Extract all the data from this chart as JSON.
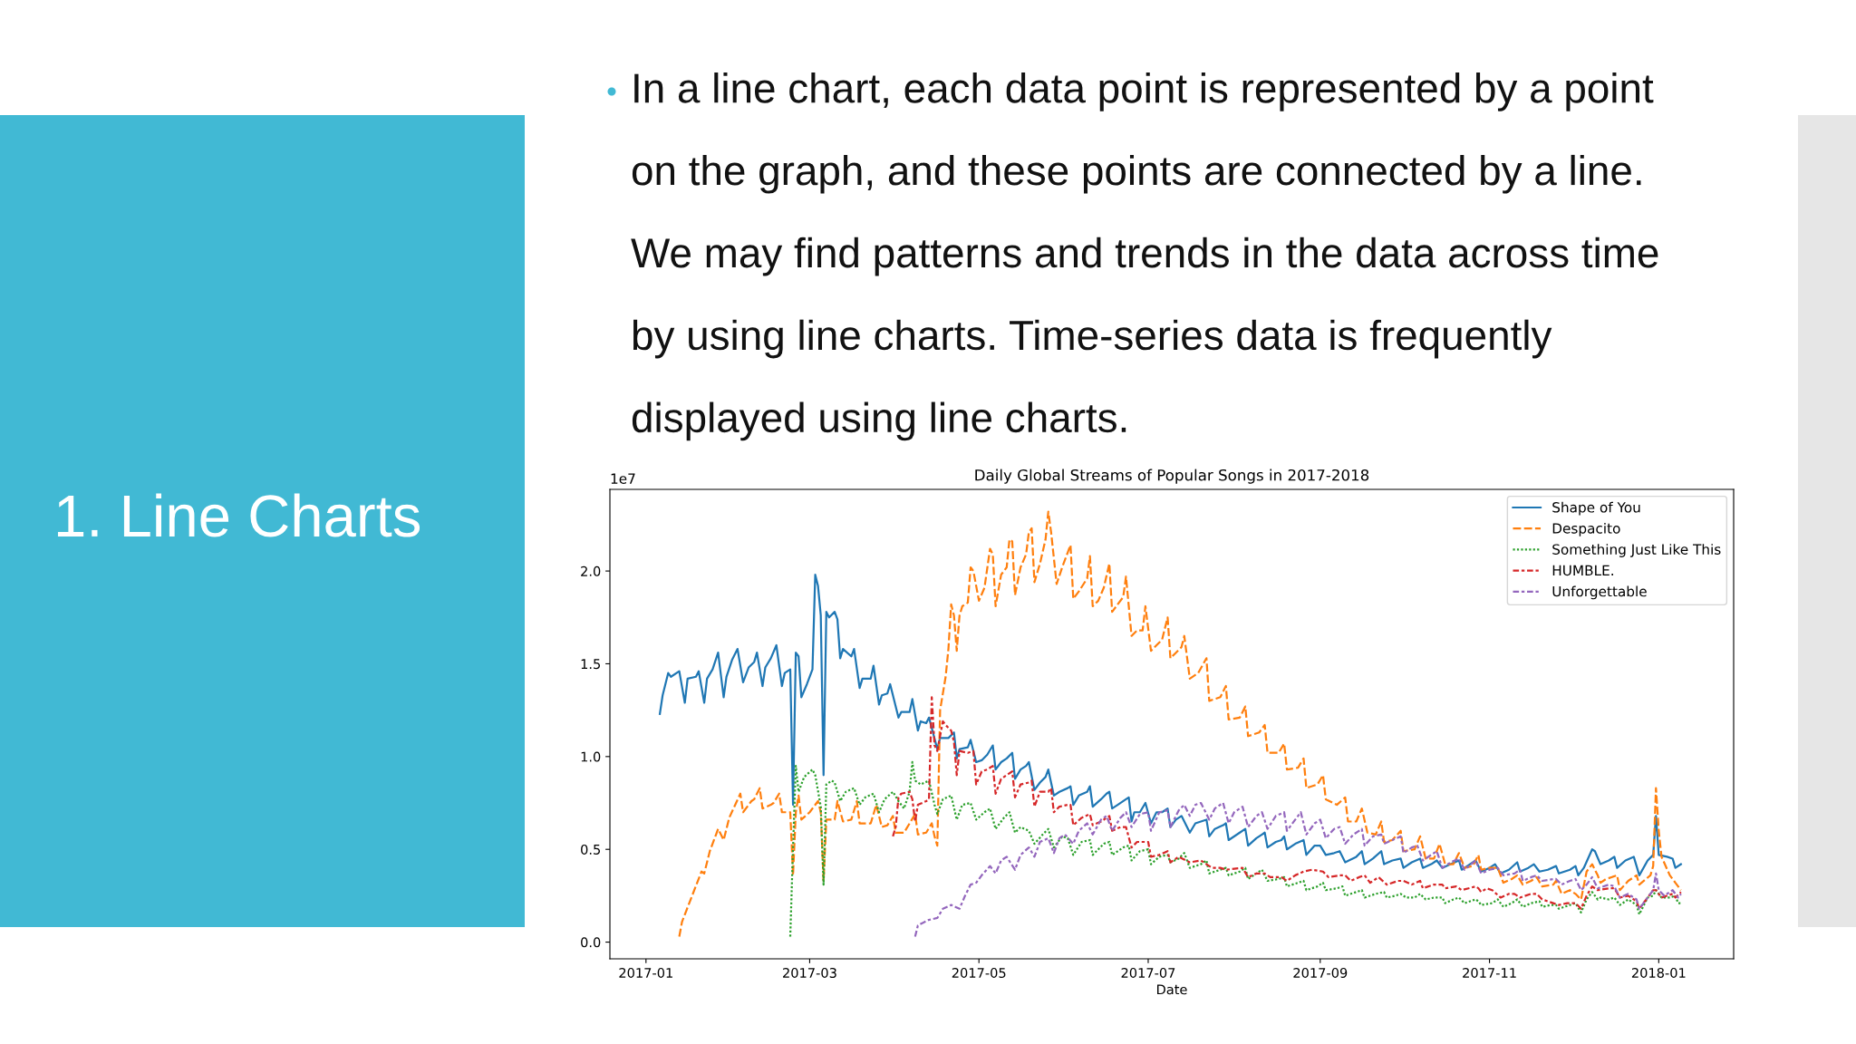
{
  "chart_data": {
    "type": "line",
    "title": "Daily Global Streams of Popular Songs in 2017-2018",
    "xlabel": "Date",
    "annotations": [
      "1. Line Charts",
      "In a line chart, each data point is represented by a point on the graph, and these points are connected by a line. We may find patterns and trends in the data across time by using line charts. Time-series data is frequently displayed using line charts.",
      "1e7"
    ],
    "xlim": [
      "2016-12-19",
      "2018-01-28"
    ],
    "ylim": [
      -0.09,
      2.44
    ],
    "xticks": [
      "2017-01",
      "2017-03",
      "2017-05",
      "2017-07",
      "2017-09",
      "2017-11",
      "2018-01"
    ],
    "yticks": [
      {
        "value": 0,
        "label": "0.0"
      },
      {
        "value": 0.5,
        "label": "0.5"
      },
      {
        "value": 1,
        "label": "1.0"
      },
      {
        "value": 1.5,
        "label": "1.5"
      },
      {
        "value": 2,
        "label": "2.0"
      }
    ],
    "grid": false,
    "legend": "top right",
    "series": [
      {
        "name": "Shape of You",
        "color": "#1f77b4",
        "line_style": "solid",
        "x": [
          "2017-01-06",
          "2017-01-07",
          "2017-01-09",
          "2017-01-10",
          "2017-01-13",
          "2017-01-15",
          "2017-01-16",
          "2017-01-19",
          "2017-01-20",
          "2017-01-22",
          "2017-01-23",
          "2017-01-25",
          "2017-01-27",
          "2017-01-29",
          "2017-01-30",
          "2017-02-01",
          "2017-02-03",
          "2017-02-05",
          "2017-02-07",
          "2017-02-09",
          "2017-02-10",
          "2017-02-12",
          "2017-02-13",
          "2017-02-15",
          "2017-02-17",
          "2017-02-19",
          "2017-02-20",
          "2017-02-22",
          "2017-02-23",
          "2017-02-24",
          "2017-02-25",
          "2017-02-26",
          "2017-02-28",
          "2017-03-02",
          "2017-03-03",
          "2017-03-04",
          "2017-03-05",
          "2017-03-06",
          "2017-03-07",
          "2017-03-08",
          "2017-03-10",
          "2017-03-11",
          "2017-03-12",
          "2017-03-13",
          "2017-03-16",
          "2017-03-17",
          "2017-03-19",
          "2017-03-20",
          "2017-03-23",
          "2017-03-24",
          "2017-03-26",
          "2017-03-27",
          "2017-03-29",
          "2017-03-30",
          "2017-04-02",
          "2017-04-03",
          "2017-04-06",
          "2017-04-07",
          "2017-04-09",
          "2017-04-10",
          "2017-04-12",
          "2017-04-13",
          "2017-04-16",
          "2017-04-17",
          "2017-04-20",
          "2017-04-22",
          "2017-04-23",
          "2017-04-24",
          "2017-04-27",
          "2017-04-28",
          "2017-04-30",
          "2017-05-02",
          "2017-05-04",
          "2017-05-06",
          "2017-05-07",
          "2017-05-09",
          "2017-05-11",
          "2017-05-13",
          "2017-05-14",
          "2017-05-16",
          "2017-05-18",
          "2017-05-19",
          "2017-05-21",
          "2017-05-23",
          "2017-05-25",
          "2017-05-26",
          "2017-05-28",
          "2017-05-30",
          "2017-06-02",
          "2017-06-03",
          "2017-06-04",
          "2017-06-06",
          "2017-06-09",
          "2017-06-10",
          "2017-06-11",
          "2017-06-14",
          "2017-06-16",
          "2017-06-17",
          "2017-06-18",
          "2017-06-20",
          "2017-06-23",
          "2017-06-24",
          "2017-06-25",
          "2017-06-26",
          "2017-06-28",
          "2017-06-30",
          "2017-07-02",
          "2017-07-04",
          "2017-07-06",
          "2017-07-08",
          "2017-07-09",
          "2017-07-11",
          "2017-07-13",
          "2017-07-16",
          "2017-07-18",
          "2017-07-20",
          "2017-07-22",
          "2017-07-23",
          "2017-07-25",
          "2017-07-28",
          "2017-07-29",
          "2017-07-30",
          "2017-08-03",
          "2017-08-05",
          "2017-08-06",
          "2017-08-09",
          "2017-08-11",
          "2017-08-12",
          "2017-08-13",
          "2017-08-16",
          "2017-08-18",
          "2017-08-19",
          "2017-08-20",
          "2017-08-23",
          "2017-08-26",
          "2017-08-27",
          "2017-08-30",
          "2017-09-01",
          "2017-09-03",
          "2017-09-06",
          "2017-09-08",
          "2017-09-10",
          "2017-09-14",
          "2017-09-16",
          "2017-09-17",
          "2017-09-20",
          "2017-09-23",
          "2017-09-24",
          "2017-09-27",
          "2017-09-30",
          "2017-10-01",
          "2017-10-04",
          "2017-10-07",
          "2017-10-08",
          "2017-10-11",
          "2017-10-13",
          "2017-10-15",
          "2017-10-18",
          "2017-10-21",
          "2017-10-22",
          "2017-10-24",
          "2017-10-27",
          "2017-10-29",
          "2017-11-01",
          "2017-11-03",
          "2017-11-05",
          "2017-11-08",
          "2017-11-11",
          "2017-11-12",
          "2017-11-15",
          "2017-11-17",
          "2017-11-19",
          "2017-11-22",
          "2017-11-25",
          "2017-11-26",
          "2017-11-30",
          "2017-12-02",
          "2017-12-03",
          "2017-12-05",
          "2017-12-08",
          "2017-12-09",
          "2017-12-11",
          "2017-12-14",
          "2017-12-16",
          "2017-12-17",
          "2017-12-20",
          "2017-12-23",
          "2017-12-25",
          "2017-12-28",
          "2017-12-30",
          "2017-12-31",
          "2018-01-01",
          "2018-01-04",
          "2018-01-06",
          "2018-01-07",
          "2018-01-09"
        ],
        "values": [
          1.23,
          1.33,
          1.45,
          1.43,
          1.46,
          1.29,
          1.42,
          1.43,
          1.46,
          1.29,
          1.42,
          1.47,
          1.56,
          1.32,
          1.43,
          1.52,
          1.58,
          1.4,
          1.48,
          1.51,
          1.56,
          1.38,
          1.48,
          1.53,
          1.6,
          1.38,
          1.45,
          1.47,
          0.74,
          1.56,
          1.54,
          1.32,
          1.39,
          1.47,
          1.98,
          1.92,
          1.76,
          0.9,
          1.78,
          1.75,
          1.78,
          1.74,
          1.53,
          1.58,
          1.54,
          1.58,
          1.37,
          1.42,
          1.42,
          1.49,
          1.28,
          1.33,
          1.34,
          1.39,
          1.21,
          1.24,
          1.24,
          1.31,
          1.14,
          1.19,
          1.18,
          1.21,
          1.04,
          1.1,
          1.1,
          1.13,
          0.99,
          1.04,
          1.05,
          1.09,
          0.97,
          0.98,
          1.01,
          1.06,
          0.93,
          0.97,
          0.99,
          1.02,
          0.88,
          0.93,
          0.95,
          0.97,
          0.82,
          0.86,
          0.89,
          0.93,
          0.79,
          0.81,
          0.83,
          0.84,
          0.74,
          0.79,
          0.81,
          0.84,
          0.73,
          0.77,
          0.8,
          0.81,
          0.72,
          0.74,
          0.77,
          0.78,
          0.65,
          0.7,
          0.7,
          0.75,
          0.64,
          0.7,
          0.7,
          0.72,
          0.62,
          0.66,
          0.68,
          0.59,
          0.64,
          0.65,
          0.66,
          0.57,
          0.61,
          0.63,
          0.64,
          0.55,
          0.59,
          0.61,
          0.52,
          0.56,
          0.58,
          0.59,
          0.51,
          0.54,
          0.55,
          0.57,
          0.5,
          0.53,
          0.55,
          0.47,
          0.52,
          0.52,
          0.47,
          0.48,
          0.49,
          0.43,
          0.46,
          0.49,
          0.42,
          0.45,
          0.49,
          0.42,
          0.44,
          0.45,
          0.4,
          0.43,
          0.45,
          0.4,
          0.42,
          0.44,
          0.4,
          0.42,
          0.44,
          0.39,
          0.41,
          0.44,
          0.38,
          0.4,
          0.42,
          0.37,
          0.39,
          0.43,
          0.38,
          0.4,
          0.42,
          0.38,
          0.39,
          0.41,
          0.37,
          0.39,
          0.41,
          0.36,
          0.4,
          0.5,
          0.49,
          0.42,
          0.44,
          0.46,
          0.4,
          0.44,
          0.46,
          0.36,
          0.44,
          0.47,
          0.68,
          0.47,
          0.46,
          0.45,
          0.4,
          0.42
        ]
      },
      {
        "name": "Despacito",
        "color": "#ff7f0e",
        "line_style": "dashed",
        "x": [
          "2017-01-13",
          "2017-01-14",
          "2017-01-21",
          "2017-01-22",
          "2017-01-24",
          "2017-01-27",
          "2017-01-29",
          "2017-01-31",
          "2017-02-04",
          "2017-02-05",
          "2017-02-08",
          "2017-02-09",
          "2017-02-11",
          "2017-02-12",
          "2017-02-15",
          "2017-02-16",
          "2017-02-18",
          "2017-02-19",
          "2017-02-22",
          "2017-02-23",
          "2017-02-24",
          "2017-02-25",
          "2017-02-26",
          "2017-03-01",
          "2017-03-04",
          "2017-03-05",
          "2017-03-06",
          "2017-03-07",
          "2017-03-10",
          "2017-03-11",
          "2017-03-13",
          "2017-03-16",
          "2017-03-18",
          "2017-03-19",
          "2017-03-23",
          "2017-03-25",
          "2017-03-27",
          "2017-03-29",
          "2017-03-31",
          "2017-04-01",
          "2017-04-04",
          "2017-04-08",
          "2017-04-09",
          "2017-04-12",
          "2017-04-14",
          "2017-04-15",
          "2017-04-16",
          "2017-04-17",
          "2017-04-19",
          "2017-04-20",
          "2017-04-21",
          "2017-04-22",
          "2017-04-23",
          "2017-04-24",
          "2017-04-25",
          "2017-04-27",
          "2017-04-28",
          "2017-04-29",
          "2017-05-01",
          "2017-05-03",
          "2017-05-05",
          "2017-05-06",
          "2017-05-07",
          "2017-05-09",
          "2017-05-11",
          "2017-05-12",
          "2017-05-13",
          "2017-05-14",
          "2017-05-16",
          "2017-05-18",
          "2017-05-19",
          "2017-05-20",
          "2017-05-21",
          "2017-05-23",
          "2017-05-25",
          "2017-05-26",
          "2017-05-27",
          "2017-05-29",
          "2017-05-31",
          "2017-06-02",
          "2017-06-03",
          "2017-06-04",
          "2017-06-06",
          "2017-06-09",
          "2017-06-10",
          "2017-06-11",
          "2017-06-13",
          "2017-06-15",
          "2017-06-17",
          "2017-06-18",
          "2017-06-20",
          "2017-06-22",
          "2017-06-23",
          "2017-06-25",
          "2017-06-27",
          "2017-06-29",
          "2017-06-30",
          "2017-07-02",
          "2017-07-04",
          "2017-07-06",
          "2017-07-08",
          "2017-07-09",
          "2017-07-11",
          "2017-07-13",
          "2017-07-14",
          "2017-07-16",
          "2017-07-19",
          "2017-07-22",
          "2017-07-23",
          "2017-07-27",
          "2017-07-29",
          "2017-07-30",
          "2017-08-03",
          "2017-08-05",
          "2017-08-06",
          "2017-08-10",
          "2017-08-12",
          "2017-08-13",
          "2017-08-17",
          "2017-08-19",
          "2017-08-20",
          "2017-08-24",
          "2017-08-26",
          "2017-08-27",
          "2017-08-31",
          "2017-09-02",
          "2017-09-03",
          "2017-09-07",
          "2017-09-10",
          "2017-09-11",
          "2017-09-14",
          "2017-09-16",
          "2017-09-18",
          "2017-09-21",
          "2017-09-23",
          "2017-09-24",
          "2017-09-27",
          "2017-09-30",
          "2017-10-01",
          "2017-10-05",
          "2017-10-07",
          "2017-10-09",
          "2017-10-12",
          "2017-10-14",
          "2017-10-16",
          "2017-10-19",
          "2017-10-21",
          "2017-10-23",
          "2017-10-26",
          "2017-10-28",
          "2017-10-29",
          "2017-11-01",
          "2017-11-04",
          "2017-11-06",
          "2017-11-09",
          "2017-11-11",
          "2017-11-13",
          "2017-11-16",
          "2017-11-18",
          "2017-11-20",
          "2017-11-24",
          "2017-11-25",
          "2017-11-27",
          "2017-11-30",
          "2017-12-02",
          "2017-12-04",
          "2017-12-06",
          "2017-12-08",
          "2017-12-10",
          "2017-12-11",
          "2017-12-13",
          "2017-12-17",
          "2017-12-18",
          "2017-12-21",
          "2017-12-24",
          "2017-12-25",
          "2017-12-29",
          "2017-12-30",
          "2017-12-31",
          "2018-01-01",
          "2018-01-02",
          "2018-01-05",
          "2018-01-07",
          "2018-01-09"
        ],
        "values": [
          0.03,
          0.11,
          0.38,
          0.37,
          0.49,
          0.61,
          0.55,
          0.67,
          0.8,
          0.7,
          0.76,
          0.77,
          0.83,
          0.72,
          0.74,
          0.75,
          0.8,
          0.7,
          0.7,
          0.36,
          0.7,
          0.79,
          0.66,
          0.7,
          0.76,
          0.7,
          0.33,
          0.66,
          0.66,
          0.76,
          0.65,
          0.66,
          0.76,
          0.64,
          0.64,
          0.74,
          0.62,
          0.63,
          0.68,
          0.59,
          0.59,
          0.69,
          0.58,
          0.59,
          0.64,
          0.57,
          0.52,
          1.25,
          1.43,
          1.58,
          1.82,
          1.76,
          1.57,
          1.76,
          1.81,
          1.83,
          2.02,
          2.0,
          1.84,
          1.91,
          2.12,
          2.09,
          1.81,
          1.98,
          2.02,
          2.17,
          2.16,
          1.87,
          2.02,
          2.09,
          2.21,
          2.23,
          1.94,
          2.04,
          2.17,
          2.32,
          2.21,
          1.93,
          2.02,
          2.1,
          2.14,
          1.85,
          1.89,
          1.96,
          2.08,
          1.81,
          1.84,
          1.91,
          2.04,
          1.78,
          1.82,
          1.86,
          1.97,
          1.65,
          1.68,
          1.68,
          1.81,
          1.57,
          1.6,
          1.63,
          1.75,
          1.53,
          1.56,
          1.59,
          1.65,
          1.42,
          1.45,
          1.53,
          1.3,
          1.32,
          1.38,
          1.2,
          1.21,
          1.27,
          1.11,
          1.13,
          1.17,
          1.02,
          1.02,
          1.07,
          0.93,
          0.94,
          0.99,
          0.83,
          0.85,
          0.9,
          0.77,
          0.74,
          0.78,
          0.65,
          0.65,
          0.72,
          0.59,
          0.58,
          0.65,
          0.54,
          0.55,
          0.6,
          0.49,
          0.5,
          0.57,
          0.45,
          0.45,
          0.53,
          0.42,
          0.42,
          0.48,
          0.4,
          0.41,
          0.47,
          0.39,
          0.4,
          0.4,
          0.32,
          0.34,
          0.36,
          0.31,
          0.33,
          0.35,
          0.3,
          0.31,
          0.33,
          0.26,
          0.28,
          0.26,
          0.23,
          0.38,
          0.42,
          0.36,
          0.32,
          0.34,
          0.36,
          0.28,
          0.33,
          0.36,
          0.31,
          0.36,
          0.41,
          0.83,
          0.6,
          0.46,
          0.36,
          0.32,
          0.28
        ]
      },
      {
        "name": "Something Just Like This",
        "color": "#2ca02c",
        "line_style": "dotted",
        "x": [
          "2017-02-22",
          "2017-02-23",
          "2017-02-24",
          "2017-02-25",
          "2017-02-27",
          "2017-03-02",
          "2017-03-03",
          "2017-03-05",
          "2017-03-06",
          "2017-03-07",
          "2017-03-09",
          "2017-03-10",
          "2017-03-12",
          "2017-03-14",
          "2017-03-17",
          "2017-03-19",
          "2017-03-21",
          "2017-03-24",
          "2017-03-26",
          "2017-03-28",
          "2017-03-31",
          "2017-04-02",
          "2017-04-04",
          "2017-04-06",
          "2017-04-07",
          "2017-04-08",
          "2017-04-10",
          "2017-04-13",
          "2017-04-15",
          "2017-04-16",
          "2017-04-18",
          "2017-04-21",
          "2017-04-23",
          "2017-04-25",
          "2017-04-28",
          "2017-04-30",
          "2017-05-03",
          "2017-05-05",
          "2017-05-07",
          "2017-05-10",
          "2017-05-12",
          "2017-05-14",
          "2017-05-16",
          "2017-05-19",
          "2017-05-21",
          "2017-05-24",
          "2017-05-26",
          "2017-05-28",
          "2017-05-31",
          "2017-06-02",
          "2017-06-04",
          "2017-06-07",
          "2017-06-10",
          "2017-06-11",
          "2017-06-15",
          "2017-06-17",
          "2017-06-18",
          "2017-06-22",
          "2017-06-24",
          "2017-06-25",
          "2017-06-28",
          "2017-07-01",
          "2017-07-02",
          "2017-07-05",
          "2017-07-08",
          "2017-07-09",
          "2017-07-12",
          "2017-07-14",
          "2017-07-16",
          "2017-07-20",
          "2017-07-22",
          "2017-07-23",
          "2017-07-27",
          "2017-07-29",
          "2017-07-30",
          "2017-08-03",
          "2017-08-05",
          "2017-08-06",
          "2017-08-09",
          "2017-08-11",
          "2017-08-13",
          "2017-08-17",
          "2017-08-19",
          "2017-08-20",
          "2017-08-24",
          "2017-08-26",
          "2017-08-27",
          "2017-08-31",
          "2017-09-02",
          "2017-09-03",
          "2017-09-07",
          "2017-09-09",
          "2017-09-10",
          "2017-09-14",
          "2017-09-16",
          "2017-09-17",
          "2017-09-21",
          "2017-09-24",
          "2017-09-25",
          "2017-09-28",
          "2017-09-30",
          "2017-10-02",
          "2017-10-05",
          "2017-10-07",
          "2017-10-09",
          "2017-10-12",
          "2017-10-15",
          "2017-10-16",
          "2017-10-19",
          "2017-10-21",
          "2017-10-23",
          "2017-10-27",
          "2017-10-28",
          "2017-10-29",
          "2017-11-02",
          "2017-11-04",
          "2017-11-06",
          "2017-11-09",
          "2017-11-11",
          "2017-11-13",
          "2017-11-16",
          "2017-11-19",
          "2017-11-20",
          "2017-11-23",
          "2017-11-25",
          "2017-11-26",
          "2017-11-30",
          "2017-12-02",
          "2017-12-04",
          "2017-12-06",
          "2017-12-08",
          "2017-12-10",
          "2017-12-11",
          "2017-12-14",
          "2017-12-16",
          "2017-12-18",
          "2017-12-21",
          "2017-12-24",
          "2017-12-25",
          "2017-12-28",
          "2017-12-30",
          "2017-12-31",
          "2018-01-02",
          "2018-01-05",
          "2018-01-07",
          "2018-01-08",
          "2018-01-09"
        ],
        "values": [
          0.03,
          0.51,
          0.95,
          0.81,
          0.89,
          0.93,
          0.9,
          0.73,
          0.31,
          0.85,
          0.87,
          0.86,
          0.76,
          0.81,
          0.83,
          0.74,
          0.78,
          0.8,
          0.7,
          0.77,
          0.81,
          0.76,
          0.72,
          0.81,
          0.97,
          0.87,
          0.85,
          0.87,
          0.74,
          0.69,
          0.77,
          0.79,
          0.66,
          0.74,
          0.75,
          0.66,
          0.7,
          0.72,
          0.61,
          0.67,
          0.7,
          0.59,
          0.62,
          0.6,
          0.53,
          0.58,
          0.61,
          0.51,
          0.57,
          0.56,
          0.47,
          0.54,
          0.55,
          0.47,
          0.53,
          0.54,
          0.47,
          0.51,
          0.52,
          0.44,
          0.49,
          0.5,
          0.42,
          0.46,
          0.47,
          0.43,
          0.45,
          0.48,
          0.4,
          0.42,
          0.44,
          0.37,
          0.39,
          0.4,
          0.36,
          0.38,
          0.4,
          0.34,
          0.37,
          0.39,
          0.33,
          0.34,
          0.35,
          0.3,
          0.32,
          0.33,
          0.28,
          0.3,
          0.32,
          0.28,
          0.29,
          0.3,
          0.25,
          0.27,
          0.28,
          0.24,
          0.26,
          0.27,
          0.24,
          0.25,
          0.26,
          0.24,
          0.24,
          0.26,
          0.23,
          0.24,
          0.24,
          0.21,
          0.23,
          0.24,
          0.21,
          0.23,
          0.22,
          0.2,
          0.21,
          0.23,
          0.19,
          0.21,
          0.23,
          0.19,
          0.21,
          0.22,
          0.19,
          0.2,
          0.2,
          0.18,
          0.2,
          0.21,
          0.16,
          0.23,
          0.27,
          0.23,
          0.24,
          0.23,
          0.24,
          0.2,
          0.23,
          0.2,
          0.15,
          0.24,
          0.25,
          0.28,
          0.24,
          0.24,
          0.25,
          0.21,
          0.21
        ]
      },
      {
        "name": "HUMBLE.",
        "color": "#d62728",
        "line_style": "dashdot",
        "x": [
          "2017-03-31",
          "2017-04-01",
          "2017-04-02",
          "2017-04-03",
          "2017-04-06",
          "2017-04-07",
          "2017-04-08",
          "2017-04-09",
          "2017-04-12",
          "2017-04-13",
          "2017-04-14",
          "2017-04-15",
          "2017-04-16",
          "2017-04-18",
          "2017-04-19",
          "2017-04-21",
          "2017-04-22",
          "2017-04-23",
          "2017-04-24",
          "2017-04-27",
          "2017-04-29",
          "2017-04-30",
          "2017-05-02",
          "2017-05-04",
          "2017-05-06",
          "2017-05-07",
          "2017-05-09",
          "2017-05-11",
          "2017-05-13",
          "2017-05-14",
          "2017-05-16",
          "2017-05-19",
          "2017-05-20",
          "2017-05-21",
          "2017-05-23",
          "2017-05-26",
          "2017-05-27",
          "2017-05-28",
          "2017-05-30",
          "2017-06-02",
          "2017-06-03",
          "2017-06-04",
          "2017-06-07",
          "2017-06-10",
          "2017-06-11",
          "2017-06-14",
          "2017-06-17",
          "2017-06-18",
          "2017-06-21",
          "2017-06-23",
          "2017-06-25",
          "2017-06-27",
          "2017-07-01",
          "2017-07-02",
          "2017-07-05",
          "2017-07-08",
          "2017-07-09",
          "2017-07-12",
          "2017-07-16",
          "2017-07-20",
          "2017-07-22",
          "2017-07-24",
          "2017-07-27",
          "2017-07-29",
          "2017-08-04",
          "2017-08-06",
          "2017-08-09",
          "2017-08-12",
          "2017-08-14",
          "2017-08-18",
          "2017-08-20",
          "2017-08-23",
          "2017-08-26",
          "2017-08-29",
          "2017-09-02",
          "2017-09-04",
          "2017-09-08",
          "2017-09-10",
          "2017-09-12",
          "2017-09-15",
          "2017-09-17",
          "2017-09-19",
          "2017-09-22",
          "2017-09-25",
          "2017-09-29",
          "2017-10-01",
          "2017-10-04",
          "2017-10-07",
          "2017-10-08",
          "2017-10-12",
          "2017-10-15",
          "2017-10-16",
          "2017-10-20",
          "2017-10-22",
          "2017-10-27",
          "2017-10-28",
          "2017-10-29",
          "2017-10-31",
          "2017-11-02",
          "2017-11-05",
          "2017-11-08",
          "2017-11-10",
          "2017-11-12",
          "2017-11-16",
          "2017-11-18",
          "2017-11-20",
          "2017-11-24",
          "2017-11-26",
          "2017-11-29",
          "2017-12-02",
          "2017-12-04",
          "2017-12-06",
          "2017-12-08",
          "2017-12-10",
          "2017-12-14",
          "2017-12-16",
          "2017-12-18",
          "2017-12-21",
          "2017-12-24",
          "2017-12-25",
          "2017-12-28",
          "2017-12-30",
          "2017-12-31",
          "2018-01-02",
          "2018-01-06",
          "2018-01-07",
          "2018-01-09"
        ],
        "values": [
          0.57,
          0.62,
          0.78,
          0.8,
          0.81,
          0.77,
          0.65,
          0.74,
          0.76,
          0.77,
          1.32,
          1.06,
          1.03,
          1.19,
          1.17,
          1.14,
          1.08,
          0.9,
          1.03,
          1.02,
          1.03,
          0.85,
          0.92,
          0.93,
          0.95,
          0.8,
          0.88,
          0.9,
          0.92,
          0.78,
          0.85,
          0.86,
          0.87,
          0.73,
          0.81,
          0.81,
          0.83,
          0.7,
          0.73,
          0.74,
          0.74,
          0.63,
          0.67,
          0.69,
          0.63,
          0.65,
          0.68,
          0.6,
          0.62,
          0.62,
          0.51,
          0.54,
          0.54,
          0.46,
          0.47,
          0.49,
          0.43,
          0.46,
          0.43,
          0.44,
          0.42,
          0.4,
          0.4,
          0.39,
          0.4,
          0.35,
          0.37,
          0.37,
          0.35,
          0.35,
          0.33,
          0.36,
          0.38,
          0.39,
          0.38,
          0.35,
          0.36,
          0.36,
          0.33,
          0.35,
          0.36,
          0.32,
          0.35,
          0.31,
          0.33,
          0.33,
          0.31,
          0.33,
          0.29,
          0.31,
          0.31,
          0.29,
          0.3,
          0.28,
          0.3,
          0.29,
          0.27,
          0.29,
          0.28,
          0.24,
          0.26,
          0.26,
          0.24,
          0.26,
          0.26,
          0.23,
          0.21,
          0.2,
          0.21,
          0.21,
          0.18,
          0.25,
          0.3,
          0.28,
          0.29,
          0.29,
          0.24,
          0.25,
          0.22,
          0.18,
          0.24,
          0.28,
          0.28,
          0.24,
          0.26,
          0.24,
          0.27
        ]
      },
      {
        "name": "Unforgettable",
        "color": "#9467bd",
        "line_style": "dashdot",
        "x": [
          "2017-04-08",
          "2017-04-09",
          "2017-04-13",
          "2017-04-16",
          "2017-04-18",
          "2017-04-21",
          "2017-04-24",
          "2017-04-26",
          "2017-04-28",
          "2017-04-30",
          "2017-05-02",
          "2017-05-05",
          "2017-05-07",
          "2017-05-09",
          "2017-05-11",
          "2017-05-14",
          "2017-05-16",
          "2017-05-19",
          "2017-05-21",
          "2017-05-23",
          "2017-05-26",
          "2017-05-28",
          "2017-05-30",
          "2017-06-01",
          "2017-06-04",
          "2017-06-06",
          "2017-06-09",
          "2017-06-11",
          "2017-06-14",
          "2017-06-16",
          "2017-06-18",
          "2017-06-21",
          "2017-06-23",
          "2017-06-25",
          "2017-06-28",
          "2017-07-01",
          "2017-07-02",
          "2017-07-05",
          "2017-07-08",
          "2017-07-09",
          "2017-07-12",
          "2017-07-14",
          "2017-07-16",
          "2017-07-18",
          "2017-07-20",
          "2017-07-23",
          "2017-07-25",
          "2017-07-28",
          "2017-07-30",
          "2017-08-01",
          "2017-08-04",
          "2017-08-06",
          "2017-08-09",
          "2017-08-11",
          "2017-08-13",
          "2017-08-16",
          "2017-08-19",
          "2017-08-20",
          "2017-08-23",
          "2017-08-25",
          "2017-08-27",
          "2017-08-30",
          "2017-09-01",
          "2017-09-03",
          "2017-09-06",
          "2017-09-08",
          "2017-09-10",
          "2017-09-13",
          "2017-09-16",
          "2017-09-17",
          "2017-09-20",
          "2017-09-23",
          "2017-09-24",
          "2017-09-27",
          "2017-09-30",
          "2017-10-01",
          "2017-10-04",
          "2017-10-06",
          "2017-10-08",
          "2017-10-11",
          "2017-10-13",
          "2017-10-15",
          "2017-10-18",
          "2017-10-21",
          "2017-10-23",
          "2017-10-27",
          "2017-10-29",
          "2017-11-01",
          "2017-11-04",
          "2017-11-06",
          "2017-11-10",
          "2017-11-12",
          "2017-11-13",
          "2017-11-16",
          "2017-11-18",
          "2017-11-20",
          "2017-11-24",
          "2017-11-25",
          "2017-11-27",
          "2017-11-30",
          "2017-12-02",
          "2017-12-04",
          "2017-12-06",
          "2017-12-08",
          "2017-12-10",
          "2017-12-14",
          "2017-12-16",
          "2017-12-18",
          "2017-12-21",
          "2017-12-24",
          "2017-12-25",
          "2017-12-28",
          "2017-12-30",
          "2017-12-31",
          "2018-01-01",
          "2018-01-03",
          "2018-01-06",
          "2018-01-08",
          "2018-01-09"
        ],
        "values": [
          0.03,
          0.09,
          0.12,
          0.13,
          0.18,
          0.2,
          0.18,
          0.25,
          0.31,
          0.32,
          0.36,
          0.41,
          0.37,
          0.44,
          0.46,
          0.39,
          0.47,
          0.51,
          0.46,
          0.54,
          0.56,
          0.48,
          0.56,
          0.58,
          0.53,
          0.6,
          0.64,
          0.58,
          0.66,
          0.68,
          0.6,
          0.67,
          0.7,
          0.62,
          0.69,
          0.7,
          0.6,
          0.7,
          0.71,
          0.62,
          0.71,
          0.74,
          0.68,
          0.74,
          0.75,
          0.66,
          0.72,
          0.75,
          0.64,
          0.7,
          0.73,
          0.62,
          0.68,
          0.7,
          0.61,
          0.68,
          0.7,
          0.6,
          0.66,
          0.7,
          0.58,
          0.64,
          0.66,
          0.56,
          0.61,
          0.62,
          0.53,
          0.58,
          0.61,
          0.52,
          0.57,
          0.58,
          0.53,
          0.55,
          0.57,
          0.48,
          0.51,
          0.52,
          0.44,
          0.47,
          0.49,
          0.4,
          0.43,
          0.45,
          0.39,
          0.44,
          0.37,
          0.39,
          0.4,
          0.36,
          0.37,
          0.39,
          0.33,
          0.35,
          0.36,
          0.33,
          0.34,
          0.34,
          0.31,
          0.33,
          0.34,
          0.28,
          0.31,
          0.35,
          0.29,
          0.31,
          0.3,
          0.24,
          0.26,
          0.23,
          0.18,
          0.24,
          0.28,
          0.37,
          0.28,
          0.25,
          0.28,
          0.24,
          0.26
        ]
      }
    ]
  }
}
